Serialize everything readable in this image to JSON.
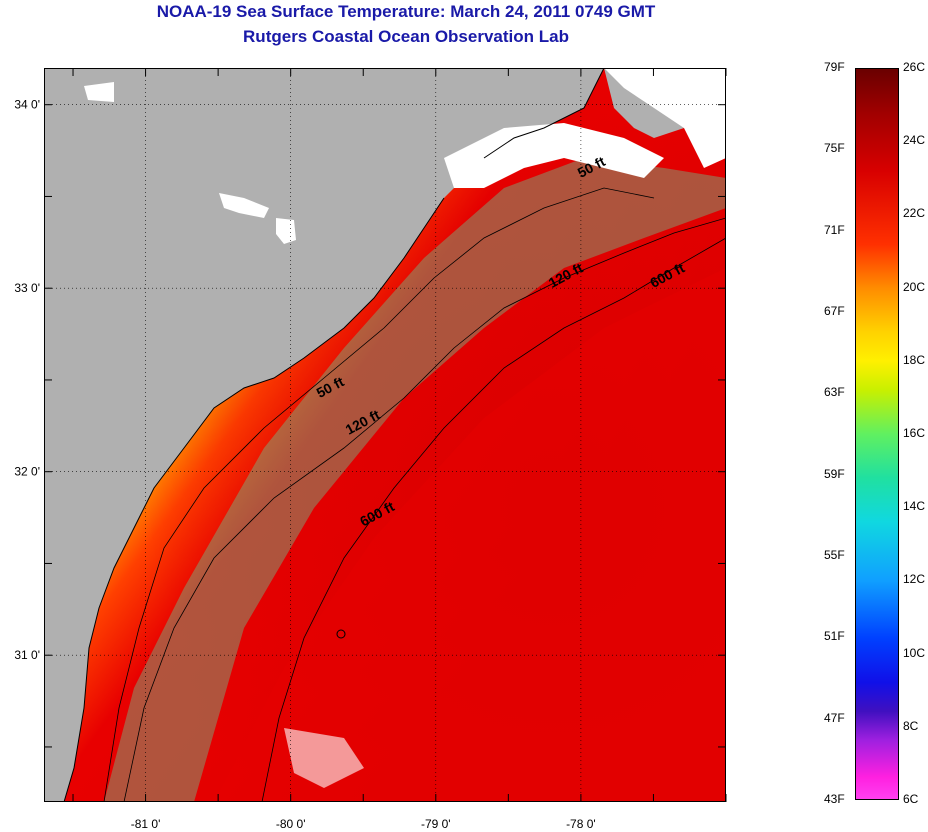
{
  "title": "NOAA-19 Sea Surface Temperature:  March 24, 2011 0749 GMT",
  "subtitle": "Rutgers Coastal Ocean Observation Lab",
  "map": {
    "lon_range": [
      -81.7,
      -77.0
    ],
    "lat_range": [
      30.2,
      34.2
    ],
    "lon_ticks": [
      {
        "value": -81,
        "label": "-81 0'"
      },
      {
        "value": -80,
        "label": "-80 0'"
      },
      {
        "value": -79,
        "label": "-79 0'"
      },
      {
        "value": -78,
        "label": "-78 0'"
      }
    ],
    "lat_ticks": [
      {
        "value": 31,
        "label": "31 0'"
      },
      {
        "value": 32,
        "label": "32 0'"
      },
      {
        "value": 33,
        "label": "33 0'"
      },
      {
        "value": 34,
        "label": "34 0'"
      }
    ],
    "contour_labels": [
      {
        "text": "50 ft",
        "lon": -78.0,
        "lat": 33.6
      },
      {
        "text": "50 ft",
        "lon": -79.8,
        "lat": 32.4
      },
      {
        "text": "120 ft",
        "lon": -78.2,
        "lat": 33.0
      },
      {
        "text": "120 ft",
        "lon": -79.6,
        "lat": 32.2
      },
      {
        "text": "600 ft",
        "lon": -77.5,
        "lat": 33.0
      },
      {
        "text": "600 ft",
        "lon": -79.5,
        "lat": 31.7
      }
    ],
    "colors": {
      "land": "#b0b0b0",
      "cloud": "#ffffff"
    }
  },
  "colorbar": {
    "fahrenheit": [
      "79F",
      "75F",
      "71F",
      "67F",
      "63F",
      "59F",
      "55F",
      "51F",
      "47F",
      "43F"
    ],
    "celsius": [
      "26C",
      "24C",
      "22C",
      "20C",
      "18C",
      "16C",
      "14C",
      "12C",
      "10C",
      "8C",
      "6C"
    ]
  }
}
